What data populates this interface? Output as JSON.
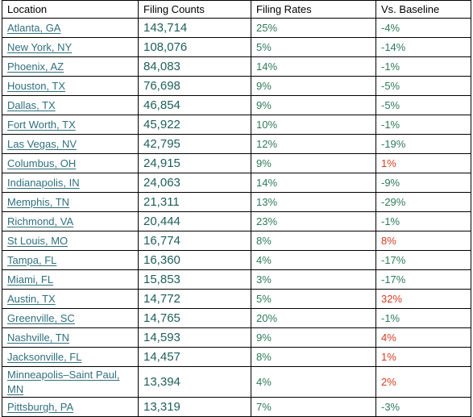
{
  "table": {
    "headers": [
      "Location",
      "Filing Counts",
      "Filing Rates",
      "Vs. Baseline"
    ],
    "rows": [
      {
        "location": "Atlanta, GA",
        "count": "143,714",
        "rate": "25%",
        "baseline": "-4%"
      },
      {
        "location": "New York, NY",
        "count": "108,076",
        "rate": "5%",
        "baseline": "-14%"
      },
      {
        "location": "Phoenix, AZ",
        "count": "84,083",
        "rate": "14%",
        "baseline": "-1%"
      },
      {
        "location": "Houston, TX",
        "count": "76,698",
        "rate": "9%",
        "baseline": "-5%"
      },
      {
        "location": "Dallas, TX",
        "count": "46,854",
        "rate": "9%",
        "baseline": "-5%"
      },
      {
        "location": "Fort Worth, TX",
        "count": "45,922",
        "rate": "10%",
        "baseline": "-1%"
      },
      {
        "location": "Las Vegas, NV",
        "count": "42,795",
        "rate": "12%",
        "baseline": "-19%"
      },
      {
        "location": "Columbus, OH",
        "count": "24,915",
        "rate": "9%",
        "baseline": "1%"
      },
      {
        "location": "Indianapolis, IN",
        "count": "24,063",
        "rate": "14%",
        "baseline": "-9%"
      },
      {
        "location": "Memphis, TN",
        "count": "21,311",
        "rate": "13%",
        "baseline": "-29%"
      },
      {
        "location": "Richmond, VA",
        "count": "20,444",
        "rate": "23%",
        "baseline": "-1%"
      },
      {
        "location": "St Louis, MO",
        "count": "16,774",
        "rate": "8%",
        "baseline": "8%"
      },
      {
        "location": "Tampa, FL",
        "count": "16,360",
        "rate": "4%",
        "baseline": "-17%"
      },
      {
        "location": "Miami, FL",
        "count": "15,853",
        "rate": "3%",
        "baseline": "-17%"
      },
      {
        "location": "Austin, TX",
        "count": "14,772",
        "rate": "5%",
        "baseline": "32%"
      },
      {
        "location": "Greenville, SC",
        "count": "14,765",
        "rate": "20%",
        "baseline": "-1%"
      },
      {
        "location": "Nashville, TN",
        "count": "14,593",
        "rate": "9%",
        "baseline": "4%"
      },
      {
        "location": "Jacksonville, FL",
        "count": "14,457",
        "rate": "8%",
        "baseline": "1%"
      },
      {
        "location": "Minneapolis–Saint Paul, MN",
        "count": "13,394",
        "rate": "4%",
        "baseline": "2%"
      },
      {
        "location": "Pittsburgh, PA",
        "count": "13,319",
        "rate": "7%",
        "baseline": "-3%"
      }
    ]
  },
  "colors": {
    "link": "#2f6f7e",
    "count": "#1f5f5a",
    "negative": "#2e7a5c",
    "positive": "#d83b1e",
    "grid": "#000000"
  }
}
